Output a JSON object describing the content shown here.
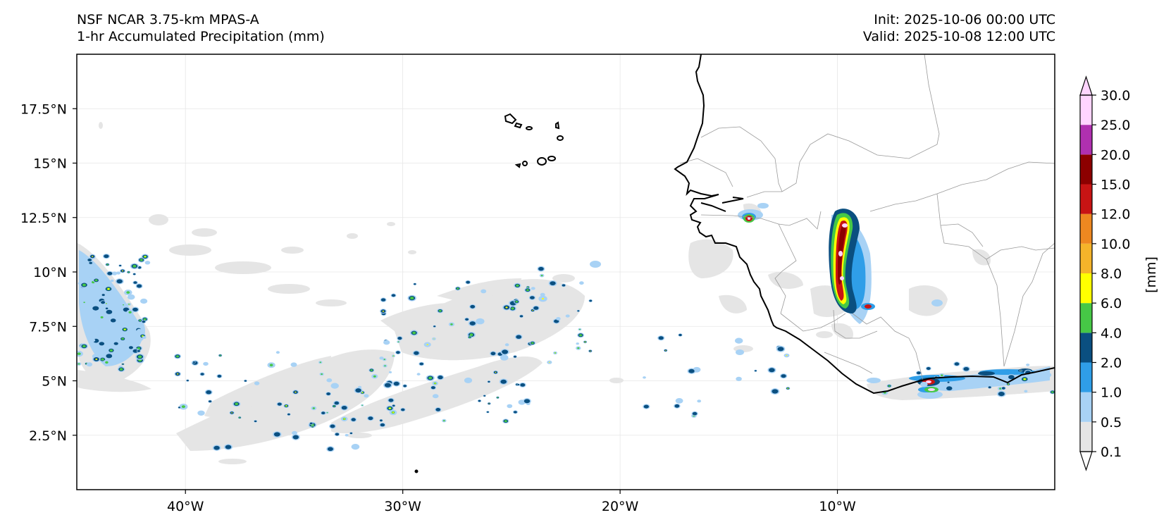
{
  "header": {
    "model": "NSF NCAR 3.75-km MPAS-A",
    "field": "1-hr Accumulated Precipitation (mm)",
    "init": "Init: 2025-10-06 00:00 UTC",
    "valid": "Valid: 2025-10-08 12:00 UTC"
  },
  "map": {
    "lon_ticks": [
      {
        "label": "40°W",
        "value": -40
      },
      {
        "label": "30°W",
        "value": -30
      },
      {
        "label": "20°W",
        "value": -20
      },
      {
        "label": "10°W",
        "value": -10
      }
    ],
    "lat_ticks": [
      {
        "label": "17.5°N",
        "value": 17.5
      },
      {
        "label": "15°N",
        "value": 15
      },
      {
        "label": "12.5°N",
        "value": 12.5
      },
      {
        "label": "10°N",
        "value": 10
      },
      {
        "label": "7.5°N",
        "value": 7.5
      },
      {
        "label": "5°N",
        "value": 5
      },
      {
        "label": "2.5°N",
        "value": 2.5
      }
    ],
    "extent": {
      "lon_min": -45,
      "lon_max": 0,
      "lat_min": 0,
      "lat_max": 20
    }
  },
  "colorbar": {
    "label": "[mm]",
    "levels": [
      "0.1",
      "0.5",
      "1.0",
      "2.0",
      "4.0",
      "6.0",
      "8.0",
      "10.0",
      "12.0",
      "15.0",
      "20.0",
      "25.0",
      "30.0"
    ],
    "colors": [
      "#e5e5e5",
      "#a8d2f5",
      "#2f9ee8",
      "#0a4f80",
      "#46c846",
      "#ffff00",
      "#f5b42a",
      "#ee8820",
      "#c81414",
      "#8c0000",
      "#b030b0",
      "#ffd5ff"
    ]
  },
  "colors": {
    "coastline": "#000000",
    "borders": "#999999",
    "grid": "#e6e6e6"
  }
}
